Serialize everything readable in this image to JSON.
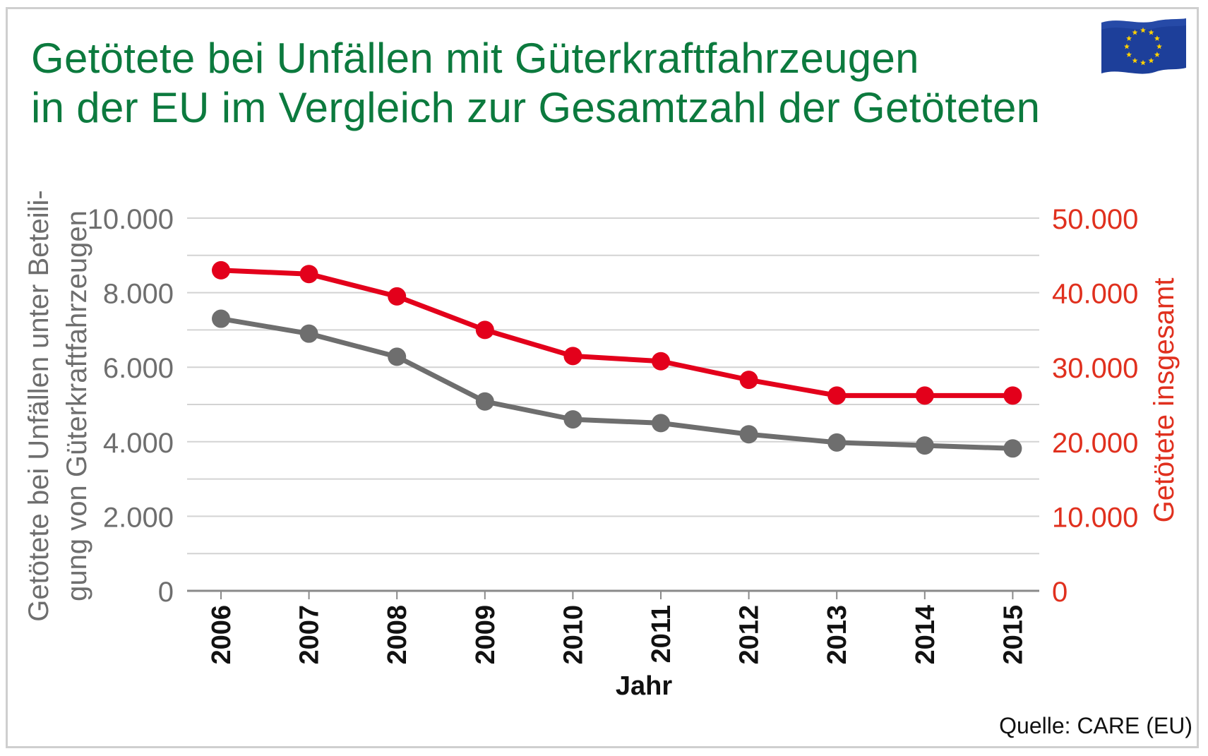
{
  "title": {
    "line1": "Getötete bei Unfällen mit Güterkraftfahrzeugen",
    "line2": "in der EU im Vergleich zur Gesamtzahl der Getöteten"
  },
  "source": "Quelle: CARE (EU)",
  "flag_icon": "eu-flag-icon",
  "colors": {
    "title": "#0c7a3e",
    "series_left": "#6e6e6e",
    "series_right": "#e3001b",
    "right_axis_text": "#e0301e",
    "left_axis_text": "#6e6e6e",
    "grid": "#d3d3d3"
  },
  "chart_data": {
    "type": "line",
    "x": [
      "2006",
      "2007",
      "2008",
      "2009",
      "2010",
      "2011",
      "2012",
      "2013",
      "2014",
      "2015"
    ],
    "xlabel": "Jahr",
    "y_left": {
      "label": "Getötete bei Unfällen unter Beteili-\ngung von Güterkraftfahrzeugen",
      "lim": [
        0,
        10000
      ],
      "ticks": [
        "0",
        "2.000",
        "4.000",
        "6.000",
        "8.000",
        "10.000"
      ]
    },
    "y_right": {
      "label": "Getötete insgesamt",
      "lim": [
        0,
        50000
      ],
      "ticks": [
        "0",
        "10.000",
        "20.000",
        "30.000",
        "40.000",
        "50.000"
      ]
    },
    "series": [
      {
        "axis": "left",
        "color": "#6e6e6e",
        "values": [
          7300,
          6900,
          6280,
          5080,
          4600,
          4500,
          4200,
          3980,
          3900,
          3820
        ]
      },
      {
        "axis": "right",
        "color": "#e3001b",
        "values": [
          43000,
          42500,
          39500,
          35000,
          31500,
          30800,
          28300,
          26200,
          26200,
          26200
        ]
      }
    ],
    "grid": true,
    "legend": "none"
  }
}
